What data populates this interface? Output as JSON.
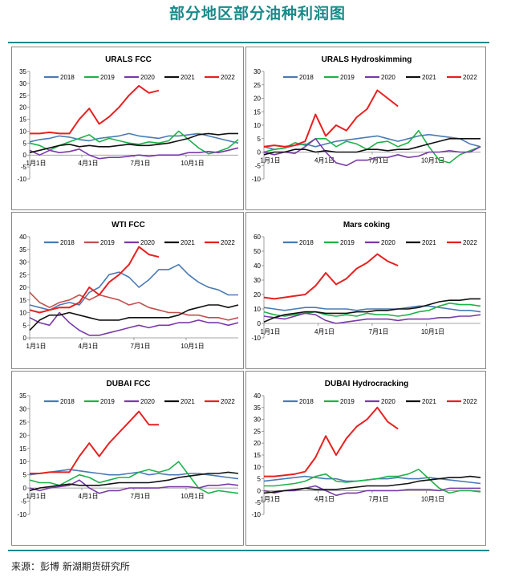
{
  "page_title": "部分地区部分油种利润图",
  "source_text": "来源：彭博 新湖期货研究所",
  "series_colors": {
    "2018": "#4a7ab5",
    "2019": "#1db34a",
    "2020": "#7a3aa8",
    "2021": "#111111",
    "2022": "#e82020",
    "2019_wti": "#c0504d"
  },
  "chart_data": [
    {
      "type": "line",
      "title": "URALS FCC",
      "ylim": [
        -10,
        35
      ],
      "yticks": [
        -10,
        -5,
        0,
        5,
        10,
        15,
        20,
        25,
        30,
        35
      ],
      "xtick_labels": [
        "1月1日",
        "4月1日",
        "7月1日",
        "10月1日"
      ],
      "legend": [
        "2018",
        "2019",
        "2020",
        "2021",
        "2022"
      ],
      "series": [
        {
          "name": "2018",
          "values": [
            5.5,
            6.5,
            7,
            8,
            7.5,
            6.5,
            6,
            7,
            7.5,
            8,
            9,
            8,
            7.5,
            7,
            8,
            8,
            8.5,
            9,
            8,
            7,
            6,
            5
          ]
        },
        {
          "name": "2019",
          "values": [
            5,
            4,
            2,
            4,
            5.5,
            7,
            8.5,
            5.5,
            7,
            6,
            5,
            4.5,
            5.5,
            5,
            6,
            10,
            6.5,
            3,
            0.5,
            1.5,
            3,
            6.5
          ]
        },
        {
          "name": "2020",
          "values": [
            2,
            0,
            2,
            1,
            1.5,
            2.5,
            0,
            -1.5,
            -1,
            -1,
            -0.5,
            0,
            -0.5,
            0,
            0,
            0,
            1,
            1,
            1.5,
            1,
            2,
            3
          ]
        },
        {
          "name": "2021",
          "values": [
            1,
            2,
            3,
            4,
            4.5,
            3.5,
            4,
            3.5,
            3.5,
            4,
            4.5,
            4,
            4,
            4.5,
            5,
            6,
            7,
            8.5,
            9,
            8.5,
            9,
            9
          ]
        },
        {
          "name": "2022",
          "values": [
            9,
            9,
            9.5,
            9,
            9,
            15,
            19.5,
            13,
            16,
            20,
            25,
            29,
            26,
            27
          ]
        }
      ]
    },
    {
      "type": "line",
      "title": "URALS Hydroskimming",
      "ylim": [
        -10,
        30
      ],
      "yticks": [
        -10,
        -5,
        0,
        5,
        10,
        15,
        20,
        25,
        30
      ],
      "xtick_labels": [
        "1月1日",
        "4月1日",
        "7月1日",
        "10月1日"
      ],
      "legend": [
        "2018",
        "2019",
        "2020",
        "2021",
        "2022"
      ],
      "series": [
        {
          "name": "2018",
          "values": [
            2,
            1,
            1.5,
            2.5,
            3,
            2,
            3,
            4,
            4.5,
            5,
            5.5,
            6,
            5,
            4,
            5,
            6,
            6.5,
            6,
            5.5,
            5,
            3,
            2
          ]
        },
        {
          "name": "2019",
          "values": [
            0,
            1,
            1.5,
            3.5,
            2.5,
            5,
            5,
            2,
            4,
            3,
            1,
            3.5,
            4,
            2,
            3.5,
            8,
            2,
            -3,
            -4,
            -1,
            0.5,
            2
          ]
        },
        {
          "name": "2020",
          "values": [
            0,
            -1,
            0,
            -0.5,
            2,
            5,
            0,
            -4,
            -5,
            -3,
            -3,
            -2,
            -2,
            -1,
            -2,
            -1.5,
            0,
            0,
            0.5,
            0,
            0,
            2
          ]
        },
        {
          "name": "2021",
          "values": [
            -1,
            0,
            0,
            1,
            1,
            0,
            0.5,
            0,
            0,
            0,
            1,
            1,
            0.5,
            1,
            1,
            2,
            3,
            4,
            5,
            5,
            5,
            5
          ]
        },
        {
          "name": "2022",
          "values": [
            2,
            2.5,
            2,
            2.5,
            4,
            14,
            6,
            10,
            8,
            13,
            16,
            23,
            20,
            17
          ]
        }
      ]
    },
    {
      "type": "line",
      "title": "WTI FCC",
      "ylim": [
        0,
        40
      ],
      "yticks": [
        0,
        5,
        10,
        15,
        20,
        25,
        30,
        35,
        40
      ],
      "xtick_labels": [
        "1月1日",
        "4月1日",
        "7月1日",
        "10月1日"
      ],
      "legend": [
        "2018",
        "2019",
        "2020",
        "2021",
        "2022"
      ],
      "series": [
        {
          "name": "2018",
          "values": [
            13,
            12,
            11,
            13,
            14,
            13,
            18,
            20,
            25,
            26,
            24,
            20,
            23,
            27,
            27,
            29,
            25,
            22,
            20,
            19,
            17,
            17
          ]
        },
        {
          "name": "2019",
          "values": [
            18,
            14,
            12,
            14,
            15,
            17,
            15,
            17,
            16,
            15,
            13,
            14,
            12,
            11,
            10,
            10,
            9,
            9,
            8,
            8,
            7,
            8
          ]
        },
        {
          "name": "2020",
          "values": [
            8,
            6,
            5,
            10,
            6,
            3,
            1,
            1,
            2,
            3,
            4,
            5,
            4,
            5,
            5,
            6,
            6,
            7,
            6,
            6,
            5,
            6
          ]
        },
        {
          "name": "2021",
          "values": [
            3,
            7,
            9,
            9,
            10,
            9,
            8,
            7,
            7,
            7,
            8,
            8,
            8,
            8,
            8,
            9,
            11,
            12,
            13,
            13,
            12,
            13
          ]
        },
        {
          "name": "2022",
          "values": [
            11,
            10,
            11,
            12,
            12,
            14,
            20,
            17,
            22,
            25,
            29,
            36,
            33,
            32
          ]
        }
      ]
    },
    {
      "type": "line",
      "title": "Mars coking",
      "ylim": [
        -10,
        60
      ],
      "yticks": [
        -10,
        0,
        10,
        20,
        30,
        40,
        50,
        60
      ],
      "xtick_labels": [
        "1月1日",
        "4月1日",
        "7月1日",
        "10月1日"
      ],
      "legend": [
        "2018",
        "2019",
        "2020",
        "2021",
        "2022"
      ],
      "series": [
        {
          "name": "2018",
          "values": [
            11,
            10,
            9,
            10,
            11,
            11,
            10,
            10,
            10,
            9,
            10,
            10,
            10,
            10,
            11,
            12,
            12,
            11,
            10,
            9,
            9,
            8
          ]
        },
        {
          "name": "2019",
          "values": [
            8,
            6,
            5,
            6,
            7,
            8,
            6,
            5,
            6,
            5,
            7,
            6,
            6,
            5,
            6,
            8,
            9,
            12,
            14,
            13,
            13,
            12
          ]
        },
        {
          "name": "2020",
          "values": [
            5,
            4,
            3,
            5,
            7,
            6,
            2,
            0,
            1,
            2,
            3,
            3,
            3,
            2,
            3,
            3,
            3,
            4,
            4,
            5,
            5,
            6
          ]
        },
        {
          "name": "2021",
          "values": [
            1,
            4,
            6,
            7,
            8,
            8,
            7,
            7,
            7,
            8,
            8,
            9,
            9,
            10,
            10,
            11,
            13,
            15,
            16,
            16,
            17,
            17
          ]
        },
        {
          "name": "2022",
          "values": [
            18,
            17,
            18,
            19,
            20,
            26,
            35,
            27,
            31,
            38,
            42,
            48,
            43,
            40
          ]
        }
      ]
    },
    {
      "type": "line",
      "title": "DUBAI FCC",
      "ylim": [
        -10,
        35
      ],
      "yticks": [
        -10,
        -5,
        0,
        5,
        10,
        15,
        20,
        25,
        30,
        35
      ],
      "xtick_labels": [
        "1月1日",
        "4月1日",
        "7月1日",
        "10月1日"
      ],
      "legend": [
        "2018",
        "2019",
        "2020",
        "2021",
        "2022"
      ],
      "series": [
        {
          "name": "2018",
          "values": [
            5,
            5.5,
            6,
            6.5,
            7,
            6.5,
            6,
            5.5,
            5,
            5,
            5.5,
            6,
            5,
            5.5,
            5,
            5,
            5.5,
            5.5,
            5,
            4.5,
            4,
            3.5
          ]
        },
        {
          "name": "2019",
          "values": [
            3,
            2,
            2,
            1,
            3,
            5,
            4,
            2,
            3,
            4,
            4,
            6,
            7,
            6,
            7,
            10,
            5,
            0,
            -2,
            -1,
            -1.5,
            -2
          ]
        },
        {
          "name": "2020",
          "values": [
            0,
            -1,
            0,
            0.5,
            1,
            3,
            0,
            -2,
            -1,
            -1,
            0,
            0,
            0,
            0,
            0.5,
            0.5,
            0.5,
            0,
            1,
            1,
            1.5,
            1
          ]
        },
        {
          "name": "2021",
          "values": [
            -1,
            0,
            0.5,
            1,
            1.5,
            1,
            1,
            1,
            1.5,
            2,
            2,
            2,
            2,
            2.5,
            3,
            4,
            4.5,
            5,
            5.5,
            5.5,
            6,
            5.5
          ]
        },
        {
          "name": "2022",
          "values": [
            5.5,
            5.5,
            6,
            6,
            6,
            12,
            17,
            12,
            17,
            21,
            25,
            29,
            24,
            24
          ]
        }
      ]
    },
    {
      "type": "line",
      "title": "DUBAI Hydrocracking",
      "ylim": [
        -10,
        40
      ],
      "yticks": [
        -10,
        -5,
        0,
        5,
        10,
        15,
        20,
        25,
        30,
        35,
        40
      ],
      "xtick_labels": [
        "1月1日",
        "4月1日",
        "7月1日",
        "10月1日"
      ],
      "legend": [
        "2018",
        "2019",
        "2020",
        "2021",
        "2022"
      ],
      "series": [
        {
          "name": "2018",
          "values": [
            4,
            4.5,
            5,
            5.5,
            6,
            5.5,
            5,
            5,
            4,
            4,
            4.5,
            5,
            5,
            5.5,
            5,
            5,
            5.5,
            5,
            4.5,
            4,
            3.5,
            3
          ]
        },
        {
          "name": "2019",
          "values": [
            2,
            2,
            2.5,
            3,
            4,
            6,
            7,
            4,
            3.5,
            4,
            4.5,
            5,
            6,
            6,
            7,
            9,
            5,
            1,
            -1,
            0,
            0,
            -0.5
          ]
        },
        {
          "name": "2020",
          "values": [
            0,
            -1,
            0,
            0,
            1,
            2,
            0,
            -2,
            -1,
            -1,
            0,
            0,
            0,
            0,
            0.5,
            0.5,
            0.5,
            0,
            1,
            1,
            1,
            1
          ]
        },
        {
          "name": "2021",
          "values": [
            -1,
            -0.5,
            0,
            0.5,
            1,
            0.5,
            0.5,
            0.5,
            1,
            1.5,
            2,
            2,
            2,
            2.5,
            3,
            4,
            4.5,
            5,
            5.5,
            5.5,
            6,
            5.5
          ]
        },
        {
          "name": "2022",
          "values": [
            6,
            6,
            6.5,
            7,
            8,
            14,
            23,
            15,
            22,
            27,
            30,
            35,
            29,
            26
          ]
        }
      ]
    }
  ]
}
